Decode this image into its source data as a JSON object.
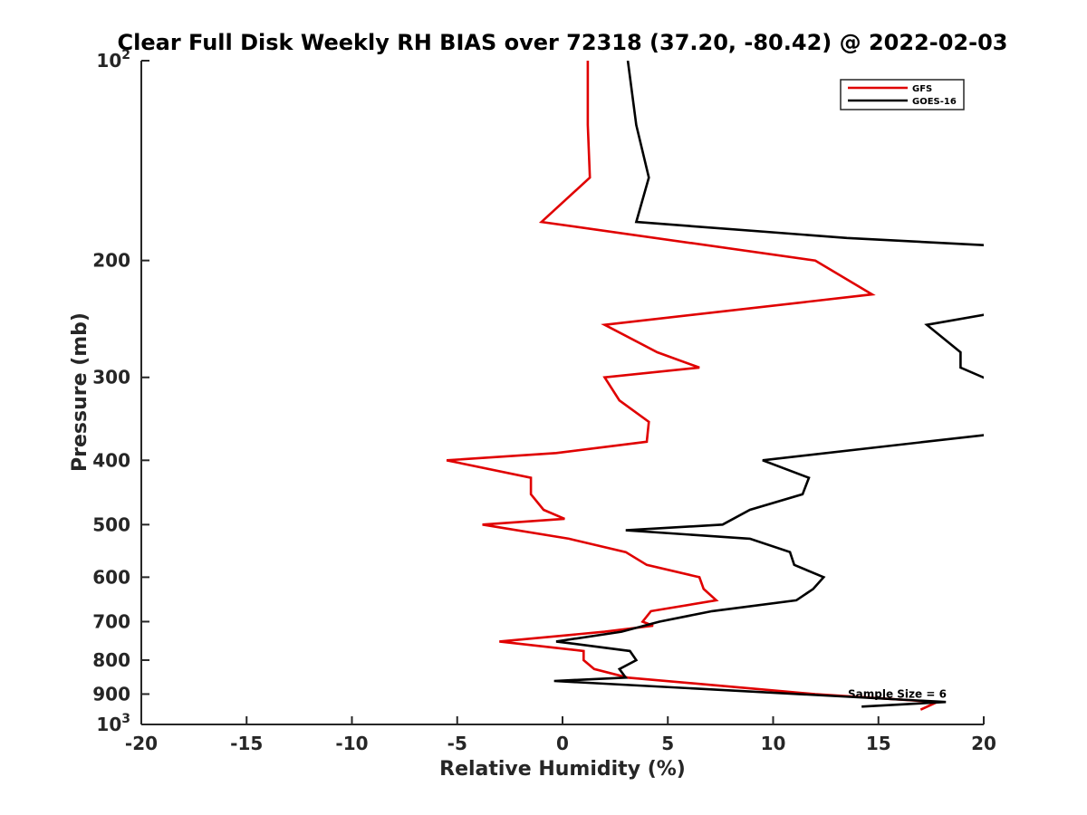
{
  "chart_data": {
    "type": "line",
    "title": "Clear Full Disk Weekly RH BIAS over 72318 (37.20, -80.42) @ 2022-02-03",
    "xlabel": "Relative Humidity (%)",
    "ylabel": "Pressure (mb)",
    "xlim": [
      -20,
      20
    ],
    "ylim": [
      100,
      1000
    ],
    "y_scale": "log",
    "y_reversed": true,
    "x_ticks": [
      "-20",
      "-15",
      "-10",
      "-5",
      "0",
      "5",
      "10",
      "15",
      "20"
    ],
    "y_ticks": [
      {
        "value": 100,
        "label": "10",
        "sup": "2"
      },
      {
        "value": 200,
        "label": "200",
        "sup": ""
      },
      {
        "value": 300,
        "label": "300",
        "sup": ""
      },
      {
        "value": 400,
        "label": "400",
        "sup": ""
      },
      {
        "value": 500,
        "label": "500",
        "sup": ""
      },
      {
        "value": 600,
        "label": "600",
        "sup": ""
      },
      {
        "value": 700,
        "label": "700",
        "sup": ""
      },
      {
        "value": 800,
        "label": "800",
        "sup": ""
      },
      {
        "value": 900,
        "label": "900",
        "sup": ""
      },
      {
        "value": 1000,
        "label": "10",
        "sup": "3"
      }
    ],
    "grid": false,
    "legend_position": "top-right",
    "series": [
      {
        "name": "GFS",
        "color": "#e00000",
        "points": [
          [
            1.2,
            100
          ],
          [
            1.2,
            125
          ],
          [
            1.3,
            150
          ],
          [
            -1.0,
            175
          ],
          [
            12.0,
            200
          ],
          [
            14.7,
            225
          ],
          [
            2.0,
            250
          ],
          [
            4.5,
            275
          ],
          [
            6.5,
            290
          ],
          [
            2.0,
            300
          ],
          [
            2.7,
            325
          ],
          [
            4.1,
            350
          ],
          [
            4.0,
            375
          ],
          [
            -0.3,
            390
          ],
          [
            -5.5,
            400
          ],
          [
            -1.5,
            425
          ],
          [
            -1.5,
            450
          ],
          [
            -0.9,
            475
          ],
          [
            0.1,
            490
          ],
          [
            -3.8,
            500
          ],
          [
            0.3,
            525
          ],
          [
            3.0,
            550
          ],
          [
            4.0,
            575
          ],
          [
            6.5,
            600
          ],
          [
            6.7,
            625
          ],
          [
            7.3,
            650
          ],
          [
            4.2,
            675
          ],
          [
            3.8,
            700
          ],
          [
            4.3,
            710
          ],
          [
            2.0,
            725
          ],
          [
            -3.0,
            750
          ],
          [
            1.0,
            775
          ],
          [
            1.0,
            800
          ],
          [
            1.5,
            825
          ],
          [
            3.1,
            850
          ],
          [
            12.0,
            900
          ],
          [
            17.8,
            925
          ],
          [
            17.0,
            950
          ]
        ]
      },
      {
        "name": "GOES-16",
        "color": "#000000",
        "points": [
          [
            3.1,
            100
          ],
          [
            3.5,
            125
          ],
          [
            4.1,
            150
          ],
          [
            3.5,
            175
          ],
          [
            13.5,
            185
          ],
          [
            20.5,
            190
          ],
          [
            null,
            null
          ],
          [
            20.5,
            240
          ],
          [
            17.3,
            250
          ],
          [
            18.9,
            275
          ],
          [
            18.9,
            290
          ],
          [
            20.5,
            305
          ],
          [
            null,
            null
          ],
          [
            20.5,
            365
          ],
          [
            9.5,
            400
          ],
          [
            11.7,
            425
          ],
          [
            11.4,
            450
          ],
          [
            8.9,
            475
          ],
          [
            7.6,
            500
          ],
          [
            3.0,
            510
          ],
          [
            8.9,
            525
          ],
          [
            10.8,
            550
          ],
          [
            11.0,
            575
          ],
          [
            12.4,
            600
          ],
          [
            11.9,
            625
          ],
          [
            11.1,
            650
          ],
          [
            7.1,
            675
          ],
          [
            4.6,
            700
          ],
          [
            2.8,
            725
          ],
          [
            -0.3,
            750
          ],
          [
            3.2,
            775
          ],
          [
            3.5,
            800
          ],
          [
            2.7,
            825
          ],
          [
            3.0,
            850
          ],
          [
            -0.4,
            860
          ],
          [
            18.2,
            925
          ],
          [
            14.2,
            940
          ]
        ]
      }
    ],
    "annotations": [
      {
        "text": "Sample Size = 6",
        "x": 15.7,
        "y": 900
      }
    ]
  }
}
